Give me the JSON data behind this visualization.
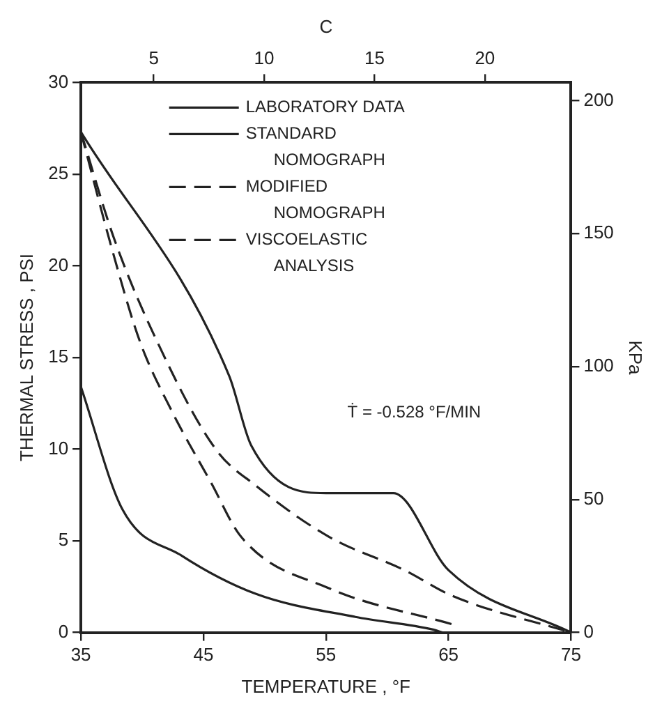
{
  "chart_data": {
    "type": "line",
    "xlabel": "TEMPERATURE , °F",
    "ylabel": "THERMAL STRESS , PSI",
    "y2label": "KPa",
    "x2label": "C",
    "xlim": [
      35,
      75
    ],
    "xticks": [
      35,
      45,
      55,
      65,
      75
    ],
    "ylim": [
      0,
      30
    ],
    "yticks": [
      0,
      5,
      10,
      15,
      20,
      25,
      30
    ],
    "x2lim": [
      1.7,
      23.9
    ],
    "x2ticks": [
      5,
      10,
      15,
      20
    ],
    "y2lim": [
      0,
      206.8
    ],
    "y2ticks": [
      0,
      50,
      100,
      150,
      200
    ],
    "grid": false,
    "legend": "top",
    "marker": "none",
    "annotations": [
      "Ṫ = -0.528 °F/MIN"
    ],
    "series": [
      {
        "name": "LABORATORY DATA",
        "color": "#222222",
        "line_style": "solid",
        "x": [
          35,
          47.1,
          48.9,
          55,
          60.5,
          65,
          75
        ],
        "values": [
          27.3,
          14,
          10.2,
          7.6,
          7.6,
          3.4,
          0
        ]
      },
      {
        "name": "STANDARD NOMOGRAPH",
        "color": "#222222",
        "line_style": "solid",
        "x": [
          35,
          38.4,
          43.2,
          49.3,
          57.4,
          63.8,
          64.5
        ],
        "values": [
          13.4,
          6.7,
          4.2,
          2.1,
          0.85,
          0.15,
          0
        ]
      },
      {
        "name": "MODIFIED NOMOGRAPH",
        "color": "#222222",
        "line_style": "dashed",
        "x": [
          35,
          37.5,
          39.8,
          42.4,
          45.6,
          48.1,
          55.3,
          65.3
        ],
        "values": [
          27.3,
          21,
          15.9,
          12.1,
          8.2,
          5.2,
          2.4,
          0.45
        ]
      },
      {
        "name": "VISCOELASTIC ANALYSIS",
        "color": "#222222",
        "line_style": "dashed",
        "x": [
          35,
          37.7,
          41.2,
          46,
          49.3,
          55.3,
          61.4,
          65.3,
          75
        ],
        "values": [
          27.3,
          21.5,
          15.9,
          10,
          8,
          5.2,
          3.4,
          2,
          0
        ]
      }
    ]
  }
}
